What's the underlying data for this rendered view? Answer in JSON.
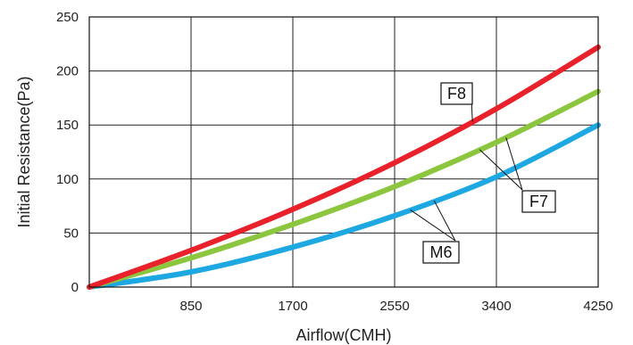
{
  "chart_data": {
    "type": "line",
    "xlabel": "Airflow(CMH)",
    "ylabel": "Initial Resistance(Pa)",
    "xlim": [
      0,
      4250
    ],
    "ylim": [
      0,
      250
    ],
    "x_ticks": [
      850,
      1700,
      2550,
      3400,
      4250
    ],
    "x_tick_labels": [
      "850",
      "1700",
      "2550",
      "3400",
      "4250"
    ],
    "y_ticks": [
      0,
      50,
      100,
      150,
      200,
      250
    ],
    "y_tick_labels": [
      "0",
      "50",
      "100",
      "150",
      "200",
      "250"
    ],
    "grid": true,
    "x": [
      0,
      850,
      1700,
      2550,
      3400,
      4250
    ],
    "series": [
      {
        "name": "F8",
        "color": "#e8212b",
        "values": [
          0,
          34,
          72,
          115,
          165,
          222
        ]
      },
      {
        "name": "F7",
        "color": "#8cc63f",
        "values": [
          0,
          27,
          58,
          93,
          134,
          181
        ]
      },
      {
        "name": "M6",
        "color": "#1ea8e2",
        "values": [
          0,
          14,
          37,
          66,
          102,
          150
        ]
      }
    ],
    "annotations": [
      "F8",
      "F7",
      "M6"
    ]
  }
}
